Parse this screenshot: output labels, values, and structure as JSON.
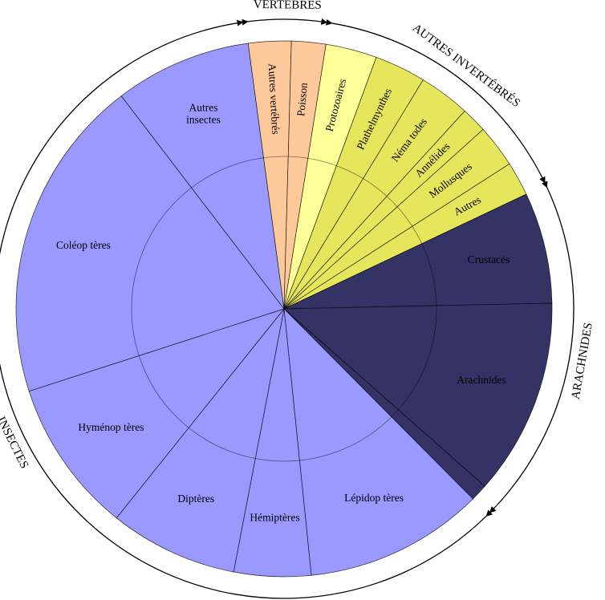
{
  "chart_data": {
    "type": "pie",
    "title": "",
    "colors": {
      "vertebres": "#fec99a",
      "protozoaires": "#ffff99",
      "autres_invertebres": "#e6e65c",
      "arachnides": "#333366",
      "insectes": "#9999ff"
    },
    "slices": [
      {
        "label": "Protozoaires",
        "value": 3,
        "color": "protozoaires",
        "lines": [
          "Protozoaires"
        ]
      },
      {
        "label": "Plathelmynthes",
        "value": 3,
        "color": "autres_invertebres",
        "lines": [
          "Plathelmynthes"
        ]
      },
      {
        "label": "Nématodes",
        "value": 3,
        "color": "autres_invertebres",
        "lines": [
          "Néma todes"
        ]
      },
      {
        "label": "Annélides",
        "value": 1.5,
        "color": "autres_invertebres",
        "lines": [
          "Annélides"
        ]
      },
      {
        "label": "Mollusques",
        "value": 2.5,
        "color": "autres_invertebres",
        "lines": [
          "Mollusques"
        ]
      },
      {
        "label": "Autres",
        "value": 2,
        "color": "autres_invertebres",
        "lines": [
          "Autres"
        ]
      },
      {
        "label": "Crustacés",
        "value": 6.5,
        "color": "arachnides",
        "lines": [
          "Crustacés"
        ]
      },
      {
        "label": "Arachnides",
        "value": 11.5,
        "color": "arachnides",
        "lines": [
          "Arachnides"
        ]
      },
      {
        "label": "",
        "value": 1,
        "color": "arachnides",
        "lines": []
      },
      {
        "label": "Lépidoptères",
        "value": 10.5,
        "color": "insectes",
        "lines": [
          "Lépidop tères"
        ]
      },
      {
        "label": "Hémiptères",
        "value": 4.5,
        "color": "insectes",
        "lines": [
          "Hémiptères"
        ]
      },
      {
        "label": "Diptères",
        "value": 7.5,
        "color": "insectes",
        "lines": [
          "Diptères"
        ]
      },
      {
        "label": "Hyménoptères",
        "value": 9,
        "color": "insectes",
        "lines": [
          "Hyménop tères"
        ]
      },
      {
        "label": "Coléoptères",
        "value": 19,
        "color": "insectes",
        "lines": [
          "Coléop tères"
        ]
      },
      {
        "label": "Autres insectes",
        "value": 8,
        "color": "insectes",
        "lines": [
          "Autres",
          "insectes"
        ]
      },
      {
        "label": "Autres vertébrés",
        "value": 2.5,
        "color": "vertebres",
        "lines": [
          "Autres vertébrés"
        ]
      },
      {
        "label": "Poisson",
        "value": 2,
        "color": "vertebres",
        "lines": [
          "Poisson"
        ]
      }
    ],
    "groups": [
      {
        "label": "VERTÉBRÉS",
        "first": 15,
        "last": 16
      },
      {
        "label": "AUTRES INVERTÉBRÉS",
        "first": 0,
        "last": 5
      },
      {
        "label": "ARACHNIDES",
        "first": 6,
        "last": 8
      },
      {
        "label": "INSECTES",
        "first": 9,
        "last": 14
      }
    ]
  }
}
